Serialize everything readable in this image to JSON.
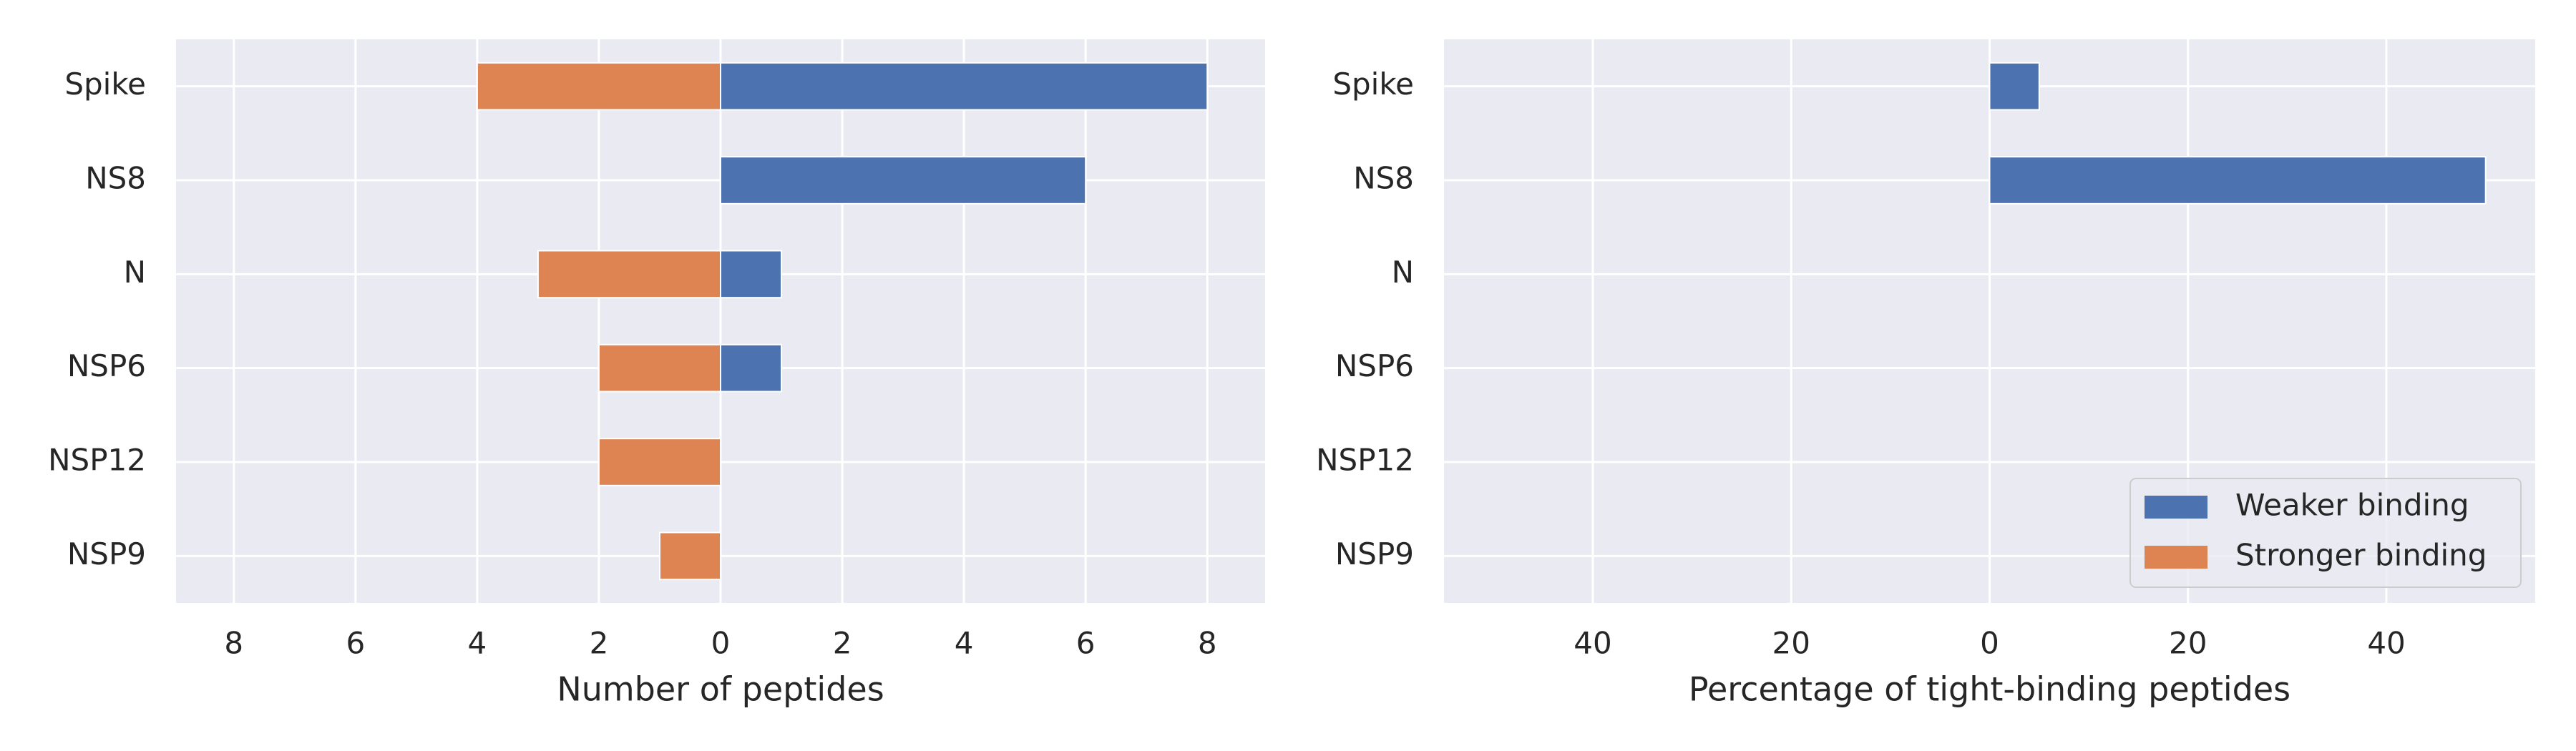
{
  "chart_data": [
    {
      "type": "bar",
      "orientation": "horizontal",
      "categories": [
        "Spike",
        "NS8",
        "N",
        "NSP6",
        "NSP12",
        "NSP9"
      ],
      "series": [
        {
          "color": "#4c72b0",
          "values": [
            8,
            6,
            1,
            1,
            0,
            0
          ]
        },
        {
          "color": "#dd8452",
          "values": [
            -4,
            0,
            -3,
            -2,
            -2,
            -1
          ]
        }
      ],
      "xlim": [
        -8.95,
        8.95
      ],
      "xticks": [
        {
          "value": -8,
          "label": "8"
        },
        {
          "value": -6,
          "label": "6"
        },
        {
          "value": -4,
          "label": "4"
        },
        {
          "value": -2,
          "label": "2"
        },
        0,
        2,
        4,
        6,
        8
      ],
      "xlabel": "Number of peptides",
      "grid": true
    },
    {
      "type": "bar",
      "orientation": "horizontal",
      "categories": [
        "Spike",
        "NS8",
        "N",
        "NSP6",
        "NSP12",
        "NSP9"
      ],
      "series": [
        {
          "name": "Weaker binding",
          "color": "#4c72b0",
          "values": [
            5,
            50,
            0,
            0,
            0,
            0
          ]
        },
        {
          "name": "Stronger binding",
          "color": "#dd8452",
          "values": [
            0,
            0,
            0,
            0,
            0,
            0
          ]
        }
      ],
      "xlim": [
        -55,
        55
      ],
      "xticks": [
        {
          "value": -40,
          "label": "40"
        },
        {
          "value": -20,
          "label": "20"
        },
        0,
        20,
        40
      ],
      "xlabel": "Percentage of tight-binding peptides",
      "grid": true,
      "legend": "lower right"
    }
  ]
}
